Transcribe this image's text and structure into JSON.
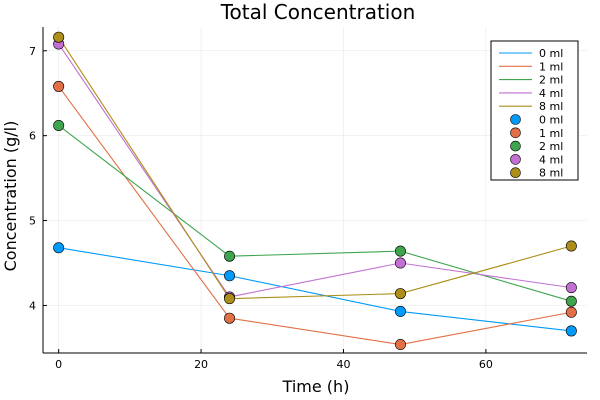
{
  "chart_data": {
    "type": "scatter",
    "title": "Total Concentration",
    "xlabel": "Time (h)",
    "ylabel": "Concentration (g/l)",
    "xlim": [
      -2.2,
      74.2
    ],
    "ylim": [
      3.44,
      7.28
    ],
    "xticks": [
      0,
      20,
      40,
      60
    ],
    "yticks": [
      4,
      5,
      6,
      7
    ],
    "grid": true,
    "legend_position": "top-right",
    "x": [
      0,
      24,
      48,
      72
    ],
    "series": [
      {
        "name": "0 ml",
        "values": [
          4.68,
          4.35,
          3.93,
          3.7
        ],
        "color": "#009AF9"
      },
      {
        "name": "1 ml",
        "values": [
          6.58,
          3.85,
          3.54,
          3.92
        ],
        "color": "#E26F46"
      },
      {
        "name": "2 ml",
        "values": [
          6.12,
          4.58,
          4.64,
          4.05
        ],
        "color": "#3EA44E"
      },
      {
        "name": "4 ml",
        "values": [
          7.08,
          4.1,
          4.5,
          4.21
        ],
        "color": "#C271D2"
      },
      {
        "name": "8 ml",
        "values": [
          7.16,
          4.08,
          4.14,
          4.7
        ],
        "color": "#AC8E18"
      }
    ]
  }
}
